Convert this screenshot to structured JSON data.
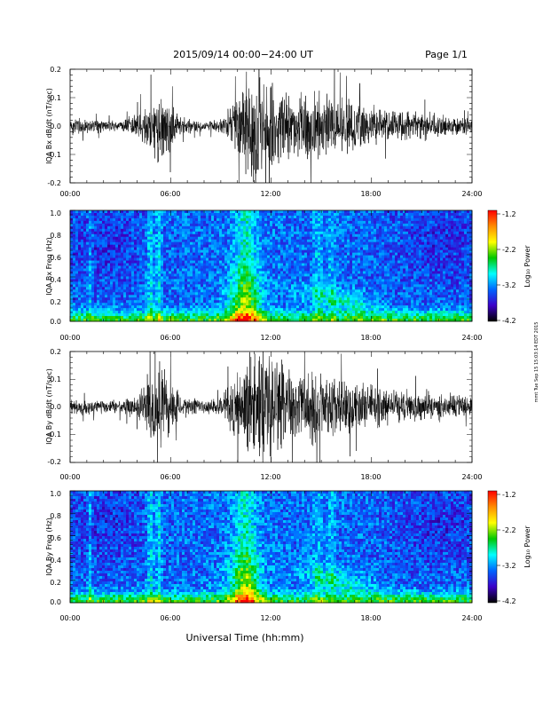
{
  "header": {
    "title": "2015/09/14  00:00−24:00 UT",
    "page": "Page 1/1"
  },
  "footer": {
    "xlabel": "Universal Time (hh:mm)",
    "side_stamp": "mmt Tue Sep 15 15:03:14 EDT 2015"
  },
  "colorbar": {
    "label": "Log₁₀ Power",
    "ticks": [
      "-1.2",
      "-2.2",
      "-3.2",
      "-4.2"
    ],
    "stops": [
      "#ff0000",
      "#ff8c00",
      "#ffff00",
      "#00c800",
      "#00ffff",
      "#0064ff",
      "#3c00c8",
      "#000000"
    ]
  },
  "chart_data": [
    {
      "type": "line",
      "ylabel": "IQA Bx dB/dt (nT/sec)",
      "xticks": [
        "00:00",
        "06:00",
        "12:00",
        "18:00",
        "24:00"
      ],
      "xlim": [
        0,
        24
      ],
      "ylim": [
        -0.2,
        0.2
      ],
      "yticks": [
        "0.2",
        "0.1",
        "0.0",
        "-0.1",
        "-0.2"
      ],
      "x_hours": [
        0,
        1,
        2,
        3,
        4,
        4.5,
        5,
        5.5,
        6,
        6.5,
        7,
        8,
        9,
        9.5,
        10,
        10.5,
        11,
        11.5,
        12,
        12.5,
        13,
        13.5,
        14,
        14.5,
        15,
        15.5,
        16,
        16.5,
        17,
        18,
        19,
        20,
        21,
        22,
        23,
        24
      ],
      "envelope": [
        0.04,
        0.03,
        0.025,
        0.02,
        0.05,
        0.1,
        0.12,
        0.16,
        0.1,
        0.04,
        0.03,
        0.02,
        0.03,
        0.08,
        0.12,
        0.22,
        0.25,
        0.24,
        0.18,
        0.16,
        0.15,
        0.12,
        0.13,
        0.16,
        0.13,
        0.15,
        0.12,
        0.11,
        0.1,
        0.08,
        0.07,
        0.06,
        0.06,
        0.05,
        0.04,
        0.03
      ]
    },
    {
      "type": "heatmap",
      "ylabel": "IQA Bx Freq (Hz)",
      "xticks": [
        "00:00",
        "06:00",
        "12:00",
        "18:00",
        "24:00"
      ],
      "xlim": [
        0,
        24
      ],
      "ylim": [
        0,
        1.0
      ],
      "yticks": [
        "1.0",
        "0.8",
        "0.6",
        "0.4",
        "0.2",
        "0.0"
      ],
      "zlim": [
        -4.2,
        -1.2
      ]
    },
    {
      "type": "line",
      "ylabel": "IQA By dB/dt (nT/sec)",
      "xticks": [
        "00:00",
        "06:00",
        "12:00",
        "18:00",
        "24:00"
      ],
      "xlim": [
        0,
        24
      ],
      "ylim": [
        -0.2,
        0.2
      ],
      "yticks": [
        "0.2",
        "0.1",
        "0.0",
        "-0.1",
        "-0.2"
      ],
      "x_hours": [
        0,
        1,
        2,
        3,
        4,
        4.5,
        5,
        5.5,
        6,
        6.5,
        7,
        8,
        9,
        9.5,
        10,
        10.5,
        11,
        11.5,
        12,
        12.5,
        13,
        13.5,
        14,
        14.5,
        15,
        15.5,
        16,
        16.5,
        17,
        18,
        19,
        20,
        21,
        22,
        23,
        24
      ],
      "envelope": [
        0.04,
        0.03,
        0.03,
        0.03,
        0.05,
        0.12,
        0.15,
        0.18,
        0.12,
        0.05,
        0.04,
        0.03,
        0.04,
        0.1,
        0.14,
        0.2,
        0.24,
        0.22,
        0.2,
        0.2,
        0.18,
        0.15,
        0.14,
        0.16,
        0.13,
        0.14,
        0.12,
        0.12,
        0.1,
        0.09,
        0.08,
        0.07,
        0.07,
        0.06,
        0.05,
        0.04
      ]
    },
    {
      "type": "heatmap",
      "ylabel": "IQA By Freq (Hz)",
      "xticks": [
        "00:00",
        "06:00",
        "12:00",
        "18:00",
        "24:00"
      ],
      "xlim": [
        0,
        24
      ],
      "ylim": [
        0,
        1.0
      ],
      "yticks": [
        "1.0",
        "0.8",
        "0.6",
        "0.4",
        "0.2",
        "0.0"
      ],
      "zlim": [
        -4.2,
        -1.2
      ]
    }
  ]
}
